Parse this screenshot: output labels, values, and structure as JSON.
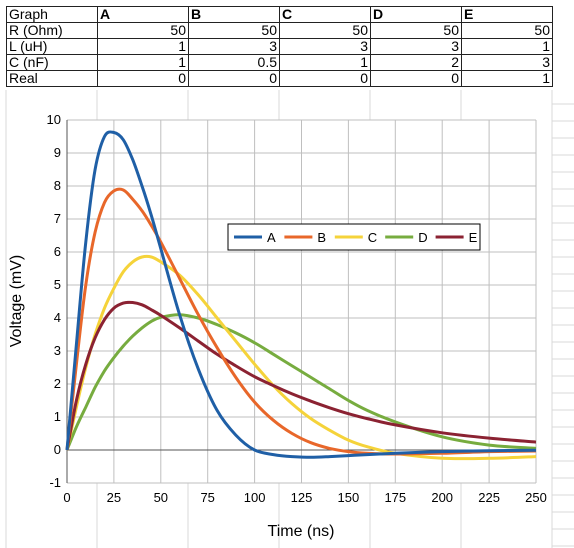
{
  "table": {
    "header": [
      "Graph",
      "A",
      "B",
      "C",
      "D",
      "E"
    ],
    "rows": [
      {
        "label": "R (Ohm)",
        "values": [
          "50",
          "50",
          "50",
          "50",
          "50"
        ]
      },
      {
        "label": "L (uH)",
        "values": [
          "1",
          "3",
          "3",
          "3",
          "1"
        ]
      },
      {
        "label": "C (nF)",
        "values": [
          "1",
          "0.5",
          "1",
          "2",
          "3"
        ]
      },
      {
        "label": "Real",
        "values": [
          "0",
          "0",
          "0",
          "0",
          "1"
        ]
      }
    ]
  },
  "chart_data": {
    "type": "line",
    "xlabel": "Time (ns)",
    "ylabel": "Voltage (mV)",
    "xlim": [
      0,
      250
    ],
    "ylim": [
      -1,
      10
    ],
    "xticks": [
      0,
      25,
      50,
      75,
      100,
      125,
      150,
      175,
      200,
      225,
      250
    ],
    "yticks": [
      -1,
      0,
      1,
      2,
      3,
      4,
      5,
      6,
      7,
      8,
      9,
      10
    ],
    "grid": true,
    "legend_position": "upper-right, inside plot",
    "series": [
      {
        "name": "A",
        "color": "#1f5fa6",
        "x": [
          0,
          5,
          10,
          15,
          20,
          25,
          30,
          35,
          40,
          45,
          50,
          60,
          70,
          80,
          90,
          100,
          110,
          120,
          130,
          140,
          150,
          160,
          175,
          200,
          225,
          250
        ],
        "y": [
          0,
          3.2,
          6.3,
          8.5,
          9.5,
          9.62,
          9.4,
          8.8,
          8.0,
          7.1,
          6.1,
          4.1,
          2.45,
          1.2,
          0.45,
          0.0,
          -0.14,
          -0.2,
          -0.22,
          -0.2,
          -0.17,
          -0.14,
          -0.1,
          -0.05,
          -0.02,
          -0.01
        ]
      },
      {
        "name": "B",
        "color": "#e8672a",
        "x": [
          0,
          5,
          10,
          15,
          20,
          25,
          30,
          35,
          40,
          45,
          50,
          60,
          70,
          80,
          90,
          100,
          110,
          120,
          130,
          140,
          150,
          160,
          175,
          200,
          225,
          250
        ],
        "y": [
          0,
          2.6,
          5.0,
          6.6,
          7.5,
          7.85,
          7.88,
          7.6,
          7.25,
          6.8,
          6.3,
          5.2,
          4.1,
          3.1,
          2.2,
          1.45,
          0.9,
          0.5,
          0.22,
          0.05,
          -0.05,
          -0.1,
          -0.12,
          -0.1,
          -0.05,
          -0.03
        ]
      },
      {
        "name": "C",
        "color": "#f5d33a",
        "x": [
          0,
          5,
          10,
          15,
          20,
          25,
          30,
          35,
          40,
          45,
          50,
          60,
          70,
          80,
          90,
          100,
          110,
          120,
          130,
          140,
          150,
          160,
          175,
          200,
          225,
          250
        ],
        "y": [
          0,
          1.3,
          2.5,
          3.5,
          4.3,
          4.9,
          5.4,
          5.7,
          5.85,
          5.85,
          5.7,
          5.3,
          4.7,
          4.0,
          3.3,
          2.6,
          1.95,
          1.4,
          0.95,
          0.6,
          0.3,
          0.1,
          -0.1,
          -0.25,
          -0.25,
          -0.2
        ]
      },
      {
        "name": "D",
        "color": "#77ac3f",
        "x": [
          0,
          5,
          10,
          15,
          20,
          25,
          30,
          35,
          40,
          45,
          50,
          60,
          70,
          80,
          90,
          100,
          110,
          120,
          130,
          140,
          150,
          160,
          175,
          200,
          225,
          250
        ],
        "y": [
          0,
          0.7,
          1.3,
          1.9,
          2.4,
          2.8,
          3.15,
          3.45,
          3.7,
          3.9,
          4.02,
          4.1,
          4.0,
          3.8,
          3.55,
          3.25,
          2.9,
          2.55,
          2.2,
          1.85,
          1.5,
          1.2,
          0.85,
          0.4,
          0.15,
          0.05
        ]
      },
      {
        "name": "E",
        "color": "#8b2232",
        "x": [
          0,
          5,
          10,
          15,
          20,
          25,
          30,
          35,
          40,
          45,
          50,
          60,
          70,
          80,
          90,
          100,
          110,
          120,
          130,
          140,
          150,
          160,
          175,
          200,
          225,
          250
        ],
        "y": [
          0,
          1.5,
          2.6,
          3.4,
          3.95,
          4.3,
          4.45,
          4.47,
          4.4,
          4.25,
          4.08,
          3.7,
          3.3,
          2.9,
          2.55,
          2.22,
          1.95,
          1.7,
          1.48,
          1.28,
          1.1,
          0.95,
          0.76,
          0.52,
          0.36,
          0.24
        ]
      }
    ]
  }
}
